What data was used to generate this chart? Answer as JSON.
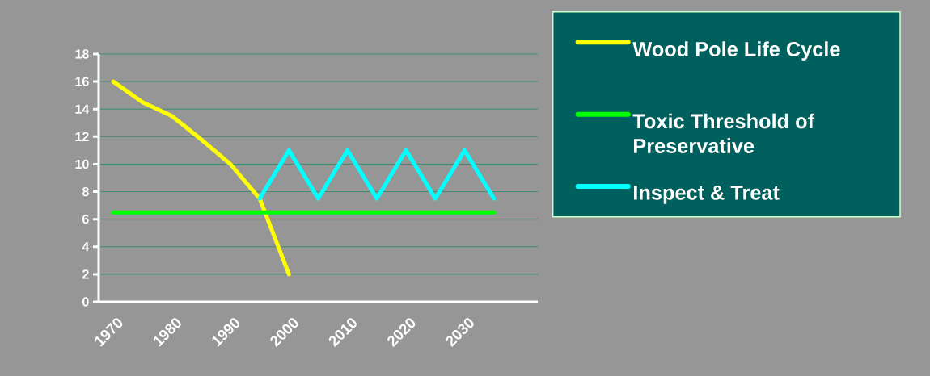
{
  "chart_data": {
    "type": "line",
    "categories": [
      "1970",
      null,
      "1980",
      null,
      "1990",
      null,
      "2000",
      null,
      "2010",
      null,
      "2020",
      null,
      "2030",
      null,
      null
    ],
    "series": [
      {
        "name": "Wood Pole Life Cycle",
        "color": "#ffff00",
        "values": [
          16,
          14.5,
          13.5,
          11.8,
          10,
          7.5,
          2,
          null,
          null,
          null,
          null,
          null,
          null,
          null,
          null
        ]
      },
      {
        "name": "Toxic Threshold of Preservative",
        "color": "#00ff00",
        "values": [
          6.5,
          6.5,
          6.5,
          6.5,
          6.5,
          6.5,
          6.5,
          6.5,
          6.5,
          6.5,
          6.5,
          6.5,
          6.5,
          6.5,
          null
        ]
      },
      {
        "name": "Inspect & Treat",
        "color": "#00ffff",
        "values": [
          null,
          null,
          null,
          null,
          null,
          7.5,
          11,
          7.5,
          11,
          7.5,
          11,
          7.5,
          11,
          7.5,
          null
        ]
      }
    ],
    "ylim": [
      0,
      18
    ],
    "yticks": [
      0,
      2,
      4,
      6,
      8,
      10,
      12,
      14,
      16,
      18
    ],
    "grid": "y",
    "legend": "right",
    "line_style": "solid"
  }
}
